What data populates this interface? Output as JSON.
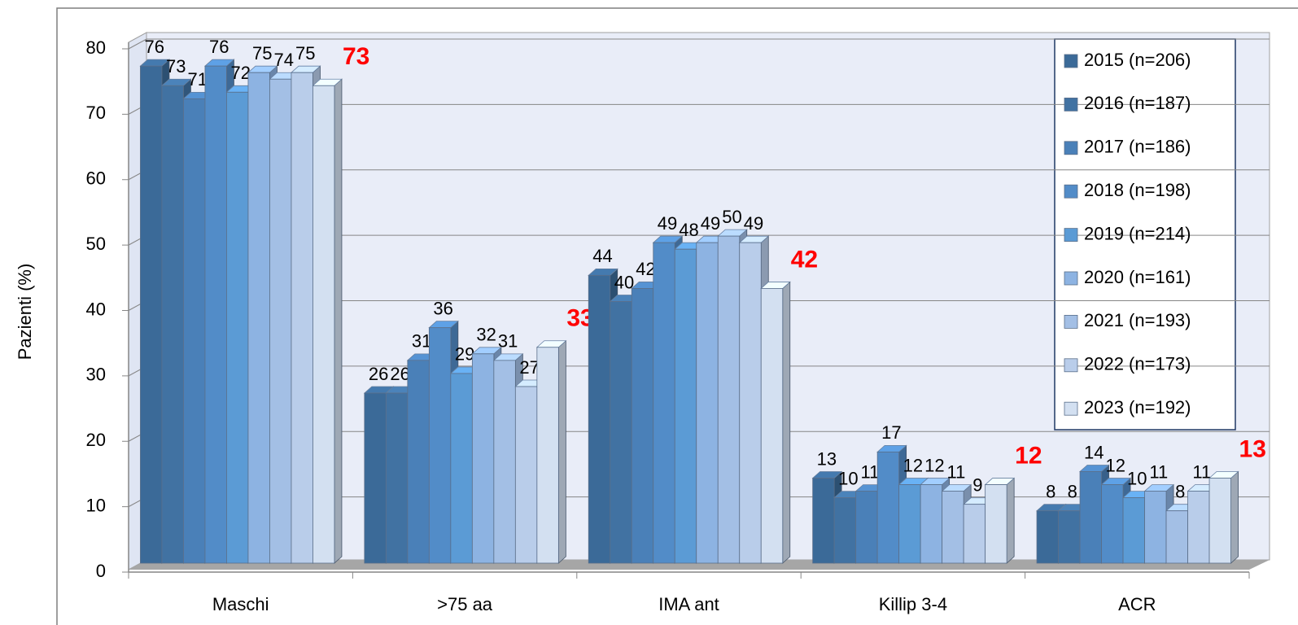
{
  "chart_data": {
    "type": "bar3d",
    "y_label": "Pazienti (%)",
    "categories": [
      "Maschi",
      ">75 aa",
      "IMA ant",
      "Killip 3-4",
      "ACR"
    ],
    "series": [
      {
        "name": "2015 (n=206)",
        "color": "#3b6a98",
        "values": [
          76,
          26,
          44,
          13,
          8
        ]
      },
      {
        "name": "2016 (n=187)",
        "color": "#4172a2",
        "values": [
          73,
          26,
          40,
          10,
          8
        ]
      },
      {
        "name": "2017 (n=186)",
        "color": "#4a80b8",
        "values": [
          71,
          31,
          42,
          11,
          14
        ]
      },
      {
        "name": "2018 (n=198)",
        "color": "#528cc8",
        "values": [
          76,
          36,
          49,
          17,
          12
        ]
      },
      {
        "name": "2019 (n=214)",
        "color": "#5b9bd5",
        "values": [
          72,
          29,
          48,
          12,
          10
        ]
      },
      {
        "name": "2020 (n=161)",
        "color": "#8db3e2",
        "values": [
          75,
          32,
          49,
          12,
          11
        ]
      },
      {
        "name": "2021 (n=193)",
        "color": "#a3bfe5",
        "values": [
          74,
          31,
          50,
          11,
          8
        ]
      },
      {
        "name": "2022 (n=173)",
        "color": "#b9cdea",
        "values": [
          75,
          27,
          49,
          9,
          11
        ]
      },
      {
        "name": "2023 (n=192)",
        "color": "#d3e0f1",
        "values": [
          73,
          33,
          42,
          12,
          13
        ],
        "label_color": "#ff0000"
      }
    ],
    "ylim": [
      0,
      80
    ],
    "yticks": [
      0,
      10,
      20,
      30,
      40,
      50,
      60,
      70,
      80
    ],
    "grid": true,
    "legend": "right"
  }
}
